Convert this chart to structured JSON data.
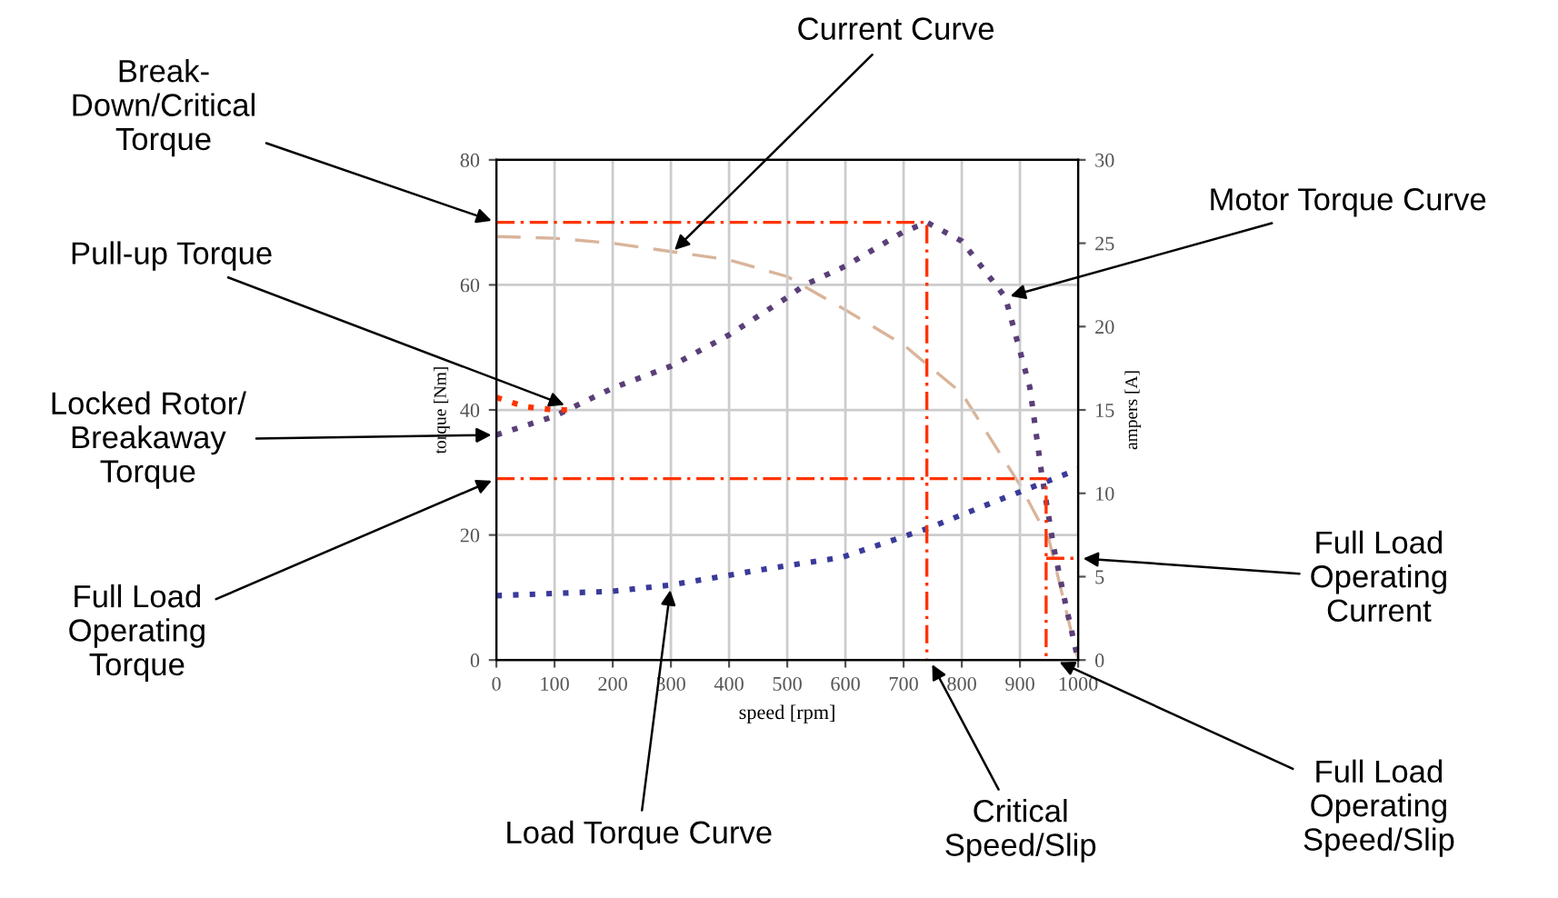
{
  "chart_data": {
    "type": "line",
    "xlabel": "speed [rpm]",
    "ylabel": "torque [Nm]",
    "y2label": "ampers [A]",
    "xlim": [
      0,
      1000
    ],
    "xticks": [
      0,
      100,
      200,
      300,
      400,
      500,
      600,
      700,
      800,
      900,
      1000
    ],
    "ylim": [
      0,
      80
    ],
    "yticks": [
      0,
      20,
      40,
      60,
      80
    ],
    "y2lim": [
      0,
      30
    ],
    "y2ticks": [
      0,
      5,
      10,
      15,
      20,
      25,
      30
    ],
    "grid": true,
    "marker": "none",
    "series": [
      {
        "color": "#d9b49a",
        "line_style": "dashed",
        "axis": "y2",
        "x": [
          0,
          100,
          200,
          300,
          400,
          500,
          600,
          700,
          800,
          900,
          950,
          1000
        ],
        "values": [
          25.4,
          25.3,
          25,
          24.5,
          24,
          23,
          21,
          18.9,
          16,
          10.5,
          7.2,
          0
        ]
      },
      {
        "color": "#5a3f78",
        "line_style": "dotted",
        "x": [
          0,
          100,
          200,
          300,
          400,
          500,
          530,
          600,
          700,
          740,
          800,
          875,
          917,
          937,
          958,
          979,
          1000
        ],
        "values": [
          36,
          39,
          43.5,
          47,
          52,
          58,
          60,
          63,
          68.5,
          70,
          67,
          58,
          43.6,
          30,
          18,
          8.7,
          0
        ]
      },
      {
        "color": "#ff3300",
        "line_style": "dotted",
        "x": [
          0,
          50,
          100,
          130
        ],
        "values": [
          42,
          40.5,
          40,
          40
        ]
      },
      {
        "color": "#3a3a9a",
        "line_style": "dotted",
        "x": [
          0,
          200,
          300,
          459,
          593,
          740,
          875,
          1000
        ],
        "values": [
          10.3,
          11,
          12,
          14.5,
          16.4,
          21,
          26,
          30.5
        ]
      },
      {
        "color": "#ff3300",
        "line_style": "dashdot",
        "x": [
          0,
          740,
          740
        ],
        "values": [
          70,
          70,
          0
        ]
      },
      {
        "color": "#ff3300",
        "line_style": "dashdot",
        "x": [
          0,
          945,
          945
        ],
        "values": [
          29,
          29,
          0
        ]
      },
      {
        "color": "#ff3300",
        "line_style": "dashdot",
        "axis": "y2",
        "x": [
          945,
          1000
        ],
        "values": [
          6.1,
          6.1
        ]
      }
    ],
    "annotations": [
      {
        "text": "Current Curve",
        "x": 300,
        "y": 65
      },
      {
        "text": "Break-\nDown/Critical\nTorque",
        "x": 0,
        "y": 70
      },
      {
        "text": "Pull-up Torque",
        "x": 125,
        "y": 40.5
      },
      {
        "text": "Locked Rotor/\nBreakaway\nTorque",
        "x": 0,
        "y": 36
      },
      {
        "text": "Full Load\nOperating\nTorque",
        "x": 0,
        "y": 29
      },
      {
        "text": "Motor Torque Curve",
        "x": 875,
        "y": 58
      },
      {
        "text": "Full Load\nOperating\nCurrent",
        "x": 1000,
        "y": 16.3
      },
      {
        "text": "Load Torque Curve",
        "x": 300,
        "y": 12
      },
      {
        "text": "Critical\nSpeed/Slip",
        "x": 745,
        "y": 0
      },
      {
        "text": "Full Load\nOperating\nSpeed/Slip",
        "x": 960,
        "y": 0
      }
    ]
  }
}
